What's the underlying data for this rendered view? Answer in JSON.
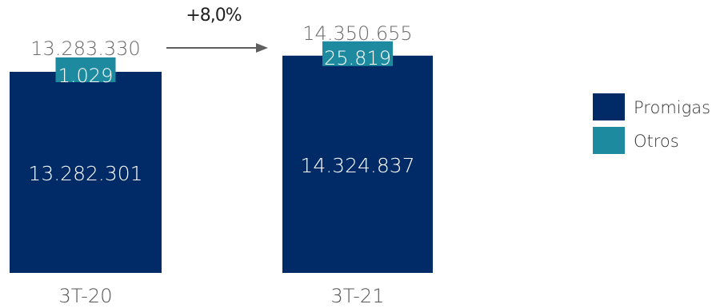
{
  "chart_data": {
    "type": "bar",
    "stacked": true,
    "categories": [
      "3T-20",
      "3T-21"
    ],
    "series": [
      {
        "name": "Promigas",
        "values": [
          13282301,
          14324837
        ],
        "labels": [
          "13.282.301",
          "14.324.837"
        ],
        "color": "#002b66"
      },
      {
        "name": "Otros",
        "values": [
          1029,
          25819
        ],
        "labels": [
          "1.029",
          "25.819"
        ],
        "color": "#1d8aa0"
      }
    ],
    "totals": [
      13283330,
      14350655
    ],
    "total_labels": [
      "13.283.330",
      "14.350.655"
    ],
    "growth_annotation": "+8,0%",
    "legend_position": "right",
    "grid": false,
    "axes_visible": false
  }
}
